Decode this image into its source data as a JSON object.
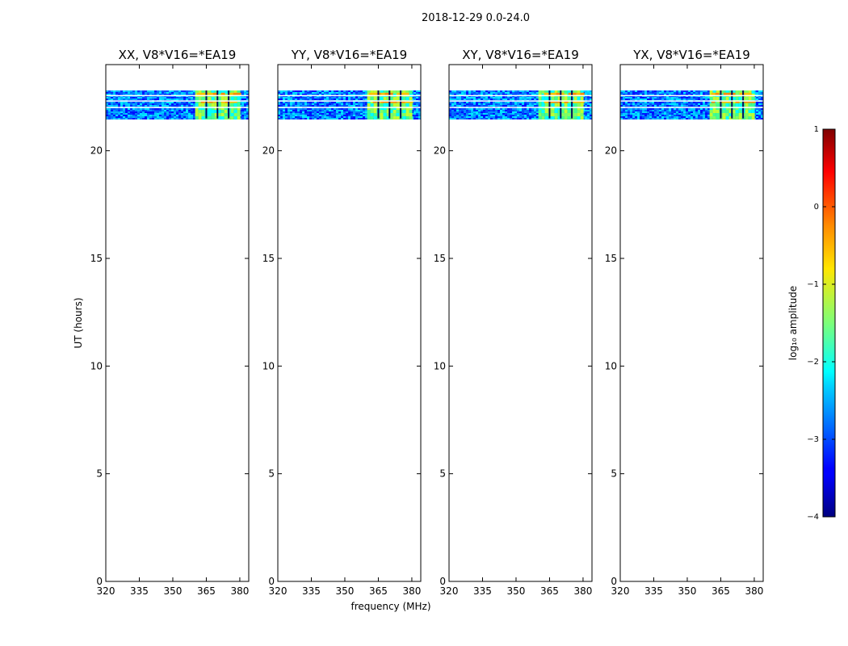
{
  "figure": {
    "suptitle": "2018-12-29 0.0-24.0",
    "xlabel": "frequency (MHz)",
    "ylabel": "UT (hours)"
  },
  "chart_data": {
    "type": "heatmap",
    "xlim": [
      320,
      384
    ],
    "ylim": [
      0,
      24
    ],
    "xticks": [
      320,
      335,
      350,
      365,
      380
    ],
    "yticks": [
      0,
      5,
      10,
      15,
      20
    ],
    "grid": false,
    "data_extent": {
      "time_start": 21.5,
      "time_end": 22.8,
      "freq_start": 320,
      "freq_end": 384
    },
    "gaps_ut": [
      22.0,
      22.3,
      22.55
    ],
    "rfi_freq_region": [
      360,
      380
    ],
    "rfi_channels_mhz": [
      365,
      370,
      375
    ],
    "panels": [
      {
        "title": "XX, V8*V16=*EA19",
        "id": "xx"
      },
      {
        "title": "YY, V8*V16=*EA19",
        "id": "yy"
      },
      {
        "title": "XY, V8*V16=*EA19",
        "id": "xy"
      },
      {
        "title": "YX, V8*V16=*EA19",
        "id": "yx"
      }
    ],
    "colorbar": {
      "label": "log₁₀ amplitude",
      "min": -4,
      "max": 1,
      "ticks": [
        1,
        0,
        -1,
        -2,
        -3,
        -4
      ],
      "tick_labels": [
        "1",
        "0",
        "−1",
        "−2",
        "−3",
        "−4"
      ],
      "colormap": "jet"
    }
  }
}
